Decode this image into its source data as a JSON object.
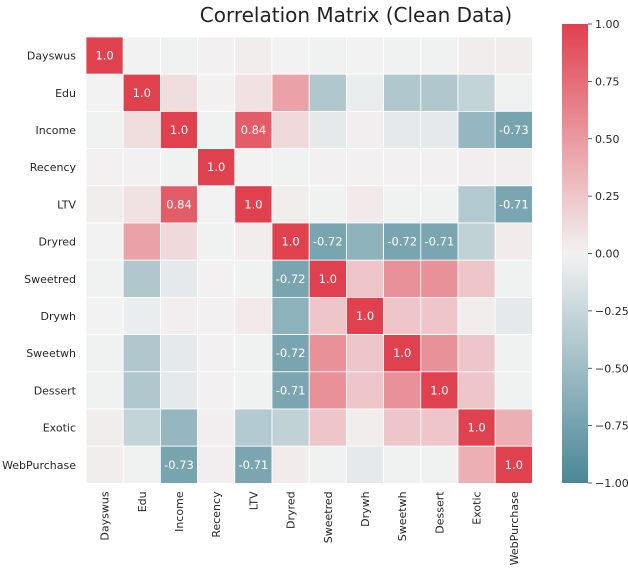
{
  "chart_data": {
    "type": "heatmap",
    "title": "Correlation Matrix (Clean Data)",
    "labels": [
      "Dayswus",
      "Edu",
      "Income",
      "Recency",
      "LTV",
      "Dryred",
      "Sweetred",
      "Drywh",
      "Sweetwh",
      "Dessert",
      "Exotic",
      "WebPurchase"
    ],
    "matrix": [
      [
        1.0,
        0.0,
        -0.02,
        0.01,
        0.03,
        0.0,
        -0.01,
        0.0,
        -0.01,
        -0.01,
        0.03,
        0.03
      ],
      [
        0.0,
        1.0,
        0.12,
        0.01,
        0.09,
        0.45,
        -0.4,
        -0.05,
        -0.4,
        -0.4,
        -0.28,
        -0.02
      ],
      [
        -0.02,
        0.12,
        1.0,
        -0.01,
        0.84,
        0.14,
        -0.08,
        0.02,
        -0.08,
        -0.08,
        -0.55,
        -0.73
      ],
      [
        0.01,
        0.01,
        -0.01,
        1.0,
        0.0,
        -0.01,
        0.01,
        0.01,
        0.01,
        0.01,
        0.02,
        0.02
      ],
      [
        0.03,
        0.09,
        0.84,
        0.0,
        1.0,
        0.03,
        -0.01,
        0.05,
        -0.01,
        -0.01,
        -0.38,
        -0.71
      ],
      [
        0.0,
        0.45,
        0.14,
        -0.01,
        0.03,
        1.0,
        -0.72,
        -0.6,
        -0.72,
        -0.71,
        -0.3,
        0.04
      ],
      [
        -0.01,
        -0.4,
        -0.08,
        0.01,
        -0.01,
        -0.72,
        1.0,
        0.25,
        0.55,
        0.55,
        0.25,
        -0.01
      ],
      [
        0.0,
        -0.05,
        0.02,
        0.01,
        0.05,
        -0.6,
        0.25,
        1.0,
        0.25,
        0.25,
        0.03,
        -0.08
      ],
      [
        -0.01,
        -0.4,
        -0.08,
        0.01,
        -0.01,
        -0.72,
        0.55,
        0.25,
        1.0,
        0.55,
        0.25,
        -0.01
      ],
      [
        -0.01,
        -0.4,
        -0.08,
        0.01,
        -0.01,
        -0.71,
        0.55,
        0.25,
        0.55,
        1.0,
        0.25,
        -0.01
      ],
      [
        0.03,
        -0.28,
        -0.55,
        0.02,
        -0.38,
        -0.3,
        0.25,
        0.03,
        0.25,
        0.25,
        1.0,
        0.38
      ],
      [
        0.03,
        -0.02,
        -0.73,
        0.02,
        -0.71,
        0.04,
        -0.01,
        -0.08,
        -0.01,
        -0.01,
        0.38,
        1.0
      ]
    ],
    "annotations": [
      {
        "row": 0,
        "col": 0,
        "text": "1.0"
      },
      {
        "row": 1,
        "col": 1,
        "text": "1.0"
      },
      {
        "row": 2,
        "col": 2,
        "text": "1.0"
      },
      {
        "row": 2,
        "col": 4,
        "text": "0.84"
      },
      {
        "row": 2,
        "col": 11,
        "text": "-0.73"
      },
      {
        "row": 3,
        "col": 3,
        "text": "1.0"
      },
      {
        "row": 4,
        "col": 2,
        "text": "0.84"
      },
      {
        "row": 4,
        "col": 4,
        "text": "1.0"
      },
      {
        "row": 4,
        "col": 11,
        "text": "-0.71"
      },
      {
        "row": 5,
        "col": 5,
        "text": "1.0"
      },
      {
        "row": 5,
        "col": 6,
        "text": "-0.72"
      },
      {
        "row": 5,
        "col": 8,
        "text": "-0.72"
      },
      {
        "row": 5,
        "col": 9,
        "text": "-0.71"
      },
      {
        "row": 6,
        "col": 5,
        "text": "-0.72"
      },
      {
        "row": 6,
        "col": 6,
        "text": "1.0"
      },
      {
        "row": 7,
        "col": 7,
        "text": "1.0"
      },
      {
        "row": 8,
        "col": 5,
        "text": "-0.72"
      },
      {
        "row": 8,
        "col": 8,
        "text": "1.0"
      },
      {
        "row": 9,
        "col": 5,
        "text": "-0.71"
      },
      {
        "row": 9,
        "col": 9,
        "text": "1.0"
      },
      {
        "row": 10,
        "col": 10,
        "text": "1.0"
      },
      {
        "row": 11,
        "col": 2,
        "text": "-0.73"
      },
      {
        "row": 11,
        "col": 4,
        "text": "-0.71"
      },
      {
        "row": 11,
        "col": 11,
        "text": "1.0"
      }
    ],
    "colorbar": {
      "vmin": -1.0,
      "vmax": 1.0,
      "ticks": [
        1.0,
        0.75,
        0.5,
        0.25,
        0.0,
        -0.25,
        -0.5,
        -0.75,
        -1.0
      ],
      "tick_labels": [
        "1.00",
        "0.75",
        "0.50",
        "0.25",
        "0.00",
        "−0.25",
        "−0.50",
        "−0.75",
        "−1.00"
      ]
    },
    "colors": {
      "negative": "#4a8796",
      "neutral": "#f2f2f2",
      "positive": "#e0414e",
      "cell_border": "#ffffff"
    },
    "grid": false,
    "legend": "colorbar-right"
  }
}
